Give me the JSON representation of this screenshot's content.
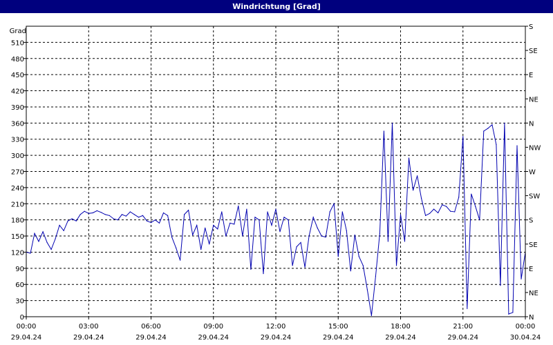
{
  "window": {
    "title": "Windrichtung [Grad]"
  },
  "chart_data": {
    "type": "line",
    "title": "Windrichtung [Grad]",
    "ylabel": "Grad",
    "ylim": [
      0,
      540
    ],
    "yticks": [
      0,
      30,
      60,
      90,
      120,
      150,
      180,
      210,
      240,
      270,
      300,
      330,
      360,
      390,
      420,
      450,
      480,
      510
    ],
    "right_axis_labels": [
      "N",
      "NE",
      "E",
      "SE",
      "S",
      "SW",
      "W",
      "NW",
      "N",
      "NE",
      "E",
      "SE",
      "S"
    ],
    "right_axis_values": [
      0,
      45,
      90,
      135,
      180,
      225,
      270,
      315,
      360,
      405,
      450,
      495,
      540
    ],
    "xlim_hours": [
      0,
      24
    ],
    "xticks": [
      {
        "hour": 0,
        "time": "00:00",
        "date": "29.04.24"
      },
      {
        "hour": 3,
        "time": "03:00",
        "date": "29.04.24"
      },
      {
        "hour": 6,
        "time": "06:00",
        "date": "29.04.24"
      },
      {
        "hour": 9,
        "time": "09:00",
        "date": "29.04.24"
      },
      {
        "hour": 12,
        "time": "12:00",
        "date": "29.04.24"
      },
      {
        "hour": 15,
        "time": "15:00",
        "date": "29.04.24"
      },
      {
        "hour": 18,
        "time": "18:00",
        "date": "29.04.24"
      },
      {
        "hour": 21,
        "time": "21:00",
        "date": "29.04.24"
      },
      {
        "hour": 24,
        "time": "00:00",
        "date": "30.04.24"
      }
    ],
    "grid": true,
    "line_color": "#0000b0",
    "series": [
      {
        "name": "",
        "x": [
          0.0,
          0.2,
          0.4,
          0.6,
          0.8,
          1.0,
          1.2,
          1.4,
          1.6,
          1.8,
          2.0,
          2.2,
          2.4,
          2.6,
          2.8,
          3.0,
          3.2,
          3.4,
          3.6,
          3.8,
          4.0,
          4.2,
          4.4,
          4.6,
          4.8,
          5.0,
          5.2,
          5.4,
          5.6,
          5.8,
          6.0,
          6.2,
          6.4,
          6.6,
          6.8,
          7.0,
          7.2,
          7.4,
          7.6,
          7.8,
          8.0,
          8.2,
          8.4,
          8.6,
          8.8,
          9.0,
          9.2,
          9.4,
          9.6,
          9.8,
          10.0,
          10.2,
          10.4,
          10.6,
          10.8,
          11.0,
          11.2,
          11.4,
          11.6,
          11.8,
          12.0,
          12.2,
          12.4,
          12.6,
          12.8,
          13.0,
          13.2,
          13.4,
          13.6,
          13.8,
          14.0,
          14.2,
          14.4,
          14.6,
          14.8,
          15.0,
          15.2,
          15.4,
          15.6,
          15.8,
          16.0,
          16.2,
          16.4,
          16.6,
          16.8,
          17.0,
          17.2,
          17.4,
          17.6,
          17.8,
          18.0,
          18.2,
          18.4,
          18.6,
          18.8,
          19.0,
          19.2,
          19.4,
          19.6,
          19.8,
          20.0,
          20.2,
          20.4,
          20.6,
          20.8,
          21.0,
          21.2,
          21.4,
          21.6,
          21.8,
          22.0,
          22.2,
          22.4,
          22.6,
          22.8,
          23.0,
          23.2,
          23.4,
          23.6,
          23.8,
          24.0
        ],
        "y": [
          120,
          118,
          155,
          140,
          158,
          138,
          125,
          145,
          170,
          160,
          178,
          182,
          178,
          190,
          196,
          192,
          193,
          197,
          194,
          190,
          188,
          182,
          180,
          190,
          187,
          195,
          190,
          185,
          188,
          178,
          175,
          180,
          174,
          193,
          188,
          148,
          128,
          105,
          190,
          198,
          152,
          170,
          125,
          165,
          135,
          170,
          163,
          195,
          150,
          174,
          172,
          206,
          150,
          200,
          88,
          185,
          180,
          80,
          195,
          170,
          200,
          158,
          185,
          180,
          95,
          130,
          138,
          92,
          150,
          185,
          165,
          150,
          148,
          195,
          210,
          112,
          195,
          160,
          85,
          152,
          112,
          95,
          50,
          2,
          75,
          155,
          345,
          140,
          360,
          95,
          190,
          140,
          295,
          235,
          262,
          220,
          188,
          192,
          200,
          193,
          208,
          205,
          196,
          195,
          222,
          335,
          15,
          228,
          205,
          180,
          345,
          350,
          357,
          320,
          58,
          360,
          5,
          8,
          318,
          70,
          120
        ]
      }
    ]
  }
}
